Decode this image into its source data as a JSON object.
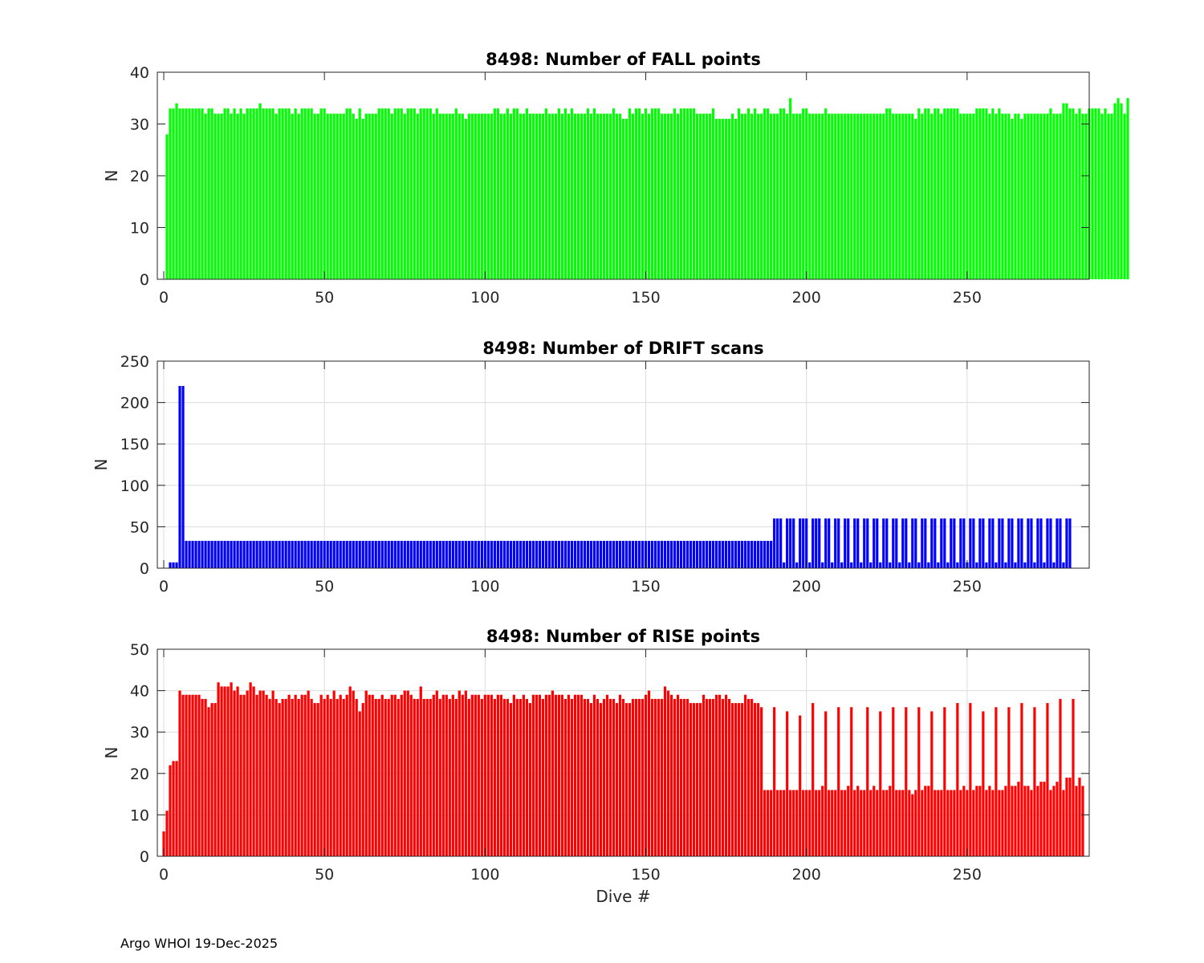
{
  "footer": "Argo WHOI 19-Dec-2025",
  "chart_data": [
    {
      "type": "bar",
      "title": "8498: Number of FALL points",
      "xlabel": "",
      "ylabel": "N",
      "color": "#00ff00",
      "xlim": [
        -2,
        288
      ],
      "ylim": [
        0,
        40
      ],
      "xticks": [
        0,
        50,
        100,
        150,
        200,
        250
      ],
      "yticks": [
        0,
        10,
        20,
        30,
        40
      ],
      "grid": false,
      "x_start": 1,
      "values": [
        28,
        33,
        33,
        34,
        33,
        33,
        33,
        33,
        33,
        33,
        33,
        33,
        32,
        33,
        33,
        32,
        32,
        32,
        33,
        33,
        32,
        33,
        32,
        33,
        32,
        33,
        33,
        33,
        33,
        34,
        33,
        33,
        33,
        33,
        32,
        33,
        33,
        33,
        33,
        32,
        33,
        32,
        33,
        33,
        33,
        33,
        32,
        32,
        33,
        33,
        32,
        32,
        32,
        32,
        32,
        32,
        33,
        33,
        32,
        31,
        33,
        31,
        32,
        32,
        32,
        32,
        33,
        33,
        33,
        33,
        32,
        33,
        33,
        33,
        32,
        33,
        33,
        33,
        32,
        33,
        33,
        33,
        33,
        32,
        33,
        32,
        32,
        32,
        32,
        32,
        33,
        32,
        32,
        31,
        32,
        32,
        32,
        32,
        32,
        32,
        32,
        32,
        33,
        33,
        32,
        32,
        33,
        32,
        33,
        33,
        32,
        32,
        33,
        32,
        32,
        32,
        32,
        32,
        33,
        32,
        32,
        32,
        33,
        32,
        33,
        32,
        33,
        32,
        32,
        32,
        32,
        33,
        32,
        33,
        32,
        32,
        32,
        32,
        32,
        33,
        32,
        32,
        31,
        31,
        33,
        32,
        33,
        33,
        32,
        33,
        32,
        33,
        33,
        33,
        32,
        32,
        32,
        32,
        33,
        32,
        33,
        33,
        33,
        33,
        33,
        32,
        32,
        32,
        32,
        32,
        33,
        31,
        31,
        31,
        31,
        31,
        32,
        31,
        33,
        32,
        32,
        33,
        32,
        33,
        32,
        32,
        33,
        33,
        32,
        32,
        32,
        33,
        33,
        32,
        35,
        32,
        32,
        32,
        33,
        33,
        32,
        32,
        32,
        32,
        32,
        33,
        32,
        32,
        32,
        32,
        32,
        32,
        32,
        32,
        32,
        32,
        32,
        32,
        32,
        32,
        32,
        32,
        32,
        32,
        33,
        33,
        32,
        32,
        32,
        32,
        32,
        32,
        32,
        31,
        33,
        32,
        33,
        33,
        32,
        33,
        33,
        32,
        33,
        33,
        33,
        33,
        33,
        32,
        32,
        32,
        32,
        32,
        33,
        33,
        33,
        33,
        32,
        33,
        32,
        33,
        32,
        32,
        32,
        31,
        32,
        32,
        31,
        32,
        32,
        32,
        32,
        32,
        32,
        32,
        32,
        33,
        32,
        32,
        32,
        34,
        34,
        33,
        33,
        32,
        33,
        32,
        32,
        33,
        33,
        33,
        33,
        32,
        33,
        32,
        32,
        34,
        35,
        34,
        32,
        35
      ]
    },
    {
      "type": "bar",
      "title": "8498: Number of DRIFT scans",
      "xlabel": "",
      "ylabel": "N",
      "color": "#0000ff",
      "xlim": [
        -2,
        288
      ],
      "ylim": [
        0,
        250
      ],
      "xticks": [
        0,
        50,
        100,
        150,
        200,
        250
      ],
      "yticks": [
        0,
        50,
        100,
        150,
        200,
        250
      ],
      "grid": true,
      "x_start": 1,
      "values": [
        0,
        7,
        7,
        7,
        220,
        220,
        33,
        33,
        33,
        33,
        33,
        33,
        33,
        33,
        33,
        33,
        33,
        33,
        33,
        33,
        33,
        33,
        33,
        33,
        33,
        33,
        33,
        33,
        33,
        33,
        33,
        33,
        33,
        33,
        33,
        33,
        33,
        33,
        33,
        33,
        33,
        33,
        33,
        33,
        33,
        33,
        33,
        33,
        33,
        33,
        33,
        33,
        33,
        33,
        33,
        33,
        33,
        33,
        33,
        33,
        33,
        33,
        33,
        33,
        33,
        33,
        33,
        33,
        33,
        33,
        33,
        33,
        33,
        33,
        33,
        33,
        33,
        33,
        33,
        33,
        33,
        33,
        33,
        33,
        33,
        33,
        33,
        33,
        33,
        33,
        33,
        33,
        33,
        33,
        33,
        33,
        33,
        33,
        33,
        33,
        33,
        33,
        33,
        33,
        33,
        33,
        33,
        33,
        33,
        33,
        33,
        33,
        33,
        33,
        33,
        33,
        33,
        33,
        33,
        33,
        33,
        33,
        33,
        33,
        33,
        33,
        33,
        33,
        33,
        33,
        33,
        33,
        33,
        33,
        33,
        33,
        33,
        33,
        33,
        33,
        33,
        33,
        33,
        33,
        33,
        33,
        33,
        33,
        33,
        33,
        33,
        33,
        33,
        33,
        33,
        33,
        33,
        33,
        33,
        33,
        33,
        33,
        33,
        33,
        33,
        33,
        33,
        33,
        33,
        33,
        33,
        33,
        33,
        33,
        33,
        33,
        33,
        33,
        33,
        33,
        33,
        33,
        33,
        33,
        33,
        33,
        33,
        33,
        33,
        60,
        60,
        60,
        7,
        60,
        60,
        60,
        7,
        60,
        60,
        60,
        7,
        60,
        60,
        60,
        7,
        60,
        60,
        7,
        60,
        60,
        7,
        60,
        60,
        7,
        60,
        60,
        7,
        60,
        60,
        7,
        60,
        60,
        7,
        60,
        60,
        7,
        60,
        60,
        7,
        60,
        60,
        7,
        60,
        60,
        7,
        60,
        60,
        7,
        60,
        60,
        7,
        60,
        60,
        7,
        60,
        60,
        7,
        60,
        60,
        7,
        60,
        60,
        7,
        60,
        60,
        7,
        60,
        60,
        7,
        60,
        60,
        7,
        60,
        60,
        7,
        60,
        60,
        7,
        60,
        60,
        7,
        60,
        60,
        7,
        60,
        60,
        7,
        60,
        60,
        7,
        60,
        60
      ]
    },
    {
      "type": "bar",
      "title": "8498: Number of RISE points",
      "xlabel": "Dive #",
      "ylabel": "N",
      "color": "#ff0000",
      "xlim": [
        -2,
        288
      ],
      "ylim": [
        0,
        50
      ],
      "xticks": [
        0,
        50,
        100,
        150,
        200,
        250
      ],
      "yticks": [
        0,
        10,
        20,
        30,
        40,
        50
      ],
      "grid": true,
      "x_start": 0,
      "values": [
        6,
        11,
        22,
        23,
        23,
        40,
        39,
        39,
        39,
        39,
        39,
        39,
        38,
        38,
        36,
        37,
        37,
        42,
        41,
        41,
        41,
        42,
        40,
        41,
        39,
        39,
        40,
        42,
        41,
        39,
        40,
        40,
        39,
        38,
        40,
        38,
        37,
        38,
        38,
        39,
        38,
        39,
        38,
        39,
        39,
        40,
        38,
        37,
        37,
        39,
        38,
        39,
        38,
        40,
        38,
        39,
        38,
        39,
        41,
        40,
        38,
        35,
        37,
        40,
        39,
        39,
        38,
        38,
        39,
        38,
        38,
        39,
        39,
        38,
        39,
        40,
        40,
        39,
        38,
        38,
        41,
        38,
        38,
        38,
        39,
        40,
        38,
        39,
        39,
        38,
        39,
        38,
        40,
        39,
        40,
        38,
        39,
        39,
        39,
        38,
        39,
        39,
        39,
        38,
        39,
        39,
        38,
        38,
        37,
        39,
        38,
        38,
        39,
        38,
        37,
        39,
        39,
        39,
        38,
        39,
        39,
        40,
        39,
        39,
        39,
        38,
        39,
        38,
        39,
        39,
        39,
        38,
        38,
        37,
        39,
        38,
        37,
        38,
        39,
        38,
        38,
        37,
        39,
        38,
        37,
        37,
        38,
        38,
        38,
        38,
        39,
        40,
        38,
        38,
        38,
        38,
        41,
        40,
        39,
        38,
        39,
        38,
        38,
        38,
        37,
        37,
        37,
        37,
        39,
        38,
        38,
        38,
        39,
        39,
        38,
        39,
        38,
        37,
        37,
        37,
        37,
        39,
        38,
        38,
        37,
        37,
        36,
        16,
        16,
        16,
        36,
        16,
        16,
        16,
        35,
        16,
        16,
        16,
        34,
        16,
        16,
        16,
        37,
        16,
        16,
        17,
        35,
        16,
        16,
        16,
        36,
        16,
        16,
        17,
        36,
        16,
        17,
        16,
        16,
        36,
        16,
        17,
        16,
        35,
        16,
        16,
        17,
        36,
        16,
        16,
        16,
        36,
        16,
        15,
        16,
        36,
        16,
        17,
        17,
        35,
        16,
        16,
        16,
        36,
        16,
        16,
        16,
        37,
        16,
        17,
        16,
        37,
        16,
        17,
        17,
        35,
        16,
        17,
        16,
        36,
        16,
        16,
        17,
        36,
        17,
        17,
        18,
        37,
        17,
        17,
        16,
        36,
        17,
        18,
        18,
        37,
        16,
        17,
        18,
        38,
        16,
        19,
        19,
        38,
        17,
        19,
        17
      ]
    }
  ]
}
